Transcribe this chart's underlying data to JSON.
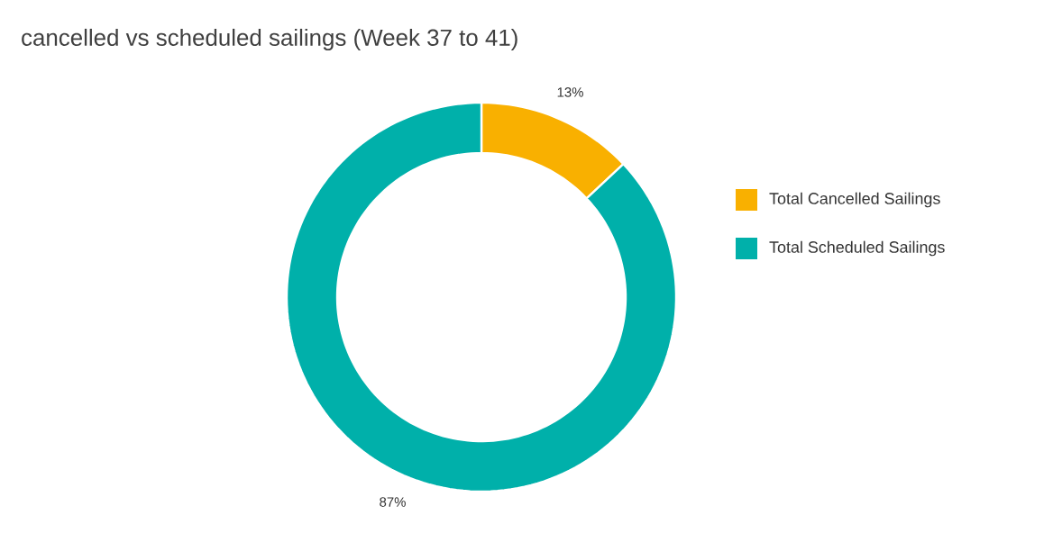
{
  "chart_data": {
    "type": "donut",
    "title": "cancelled vs scheduled sailings (Week 37 to 41)",
    "categories": [
      "Total Cancelled Sailings",
      "Total Scheduled Sailings"
    ],
    "values": [
      13,
      87
    ],
    "colors": [
      "#f9b000",
      "#00b0aa"
    ],
    "value_labels": [
      "13%",
      "87%"
    ],
    "legend": "right"
  }
}
